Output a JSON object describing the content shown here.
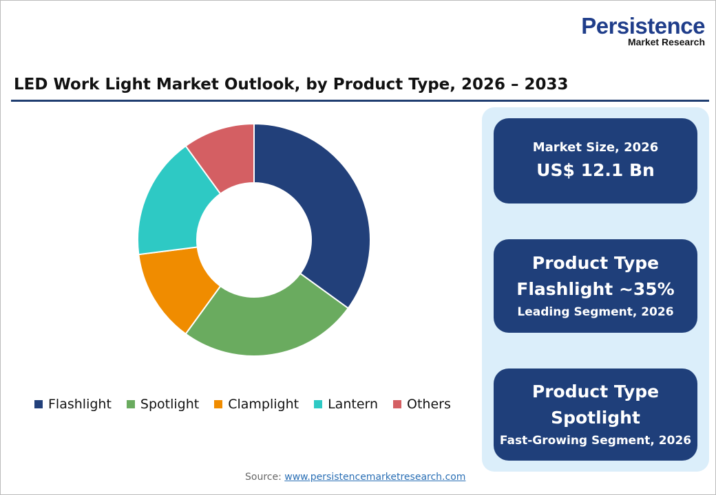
{
  "logo": {
    "line1": "Persistence",
    "line2": "Market Research"
  },
  "title": "LED Work Light Market Outlook, by Product Type, 2026 – 2033",
  "chart_data": {
    "type": "pie",
    "donut": true,
    "categories": [
      "Flashlight",
      "Spotlight",
      "Clamplight",
      "Lantern",
      "Others"
    ],
    "values": [
      35,
      25,
      13,
      17,
      10
    ],
    "colors": [
      "#22407a",
      "#6aab5f",
      "#f08c00",
      "#2ec9c4",
      "#d45f63"
    ],
    "legend": "bottom"
  },
  "cards": [
    {
      "line1": "Market Size, 2026",
      "line2": "US$ 12.1 Bn"
    },
    {
      "line1": "Product Type",
      "line2": "Flashlight ~35%",
      "line3": "Leading Segment, 2026"
    },
    {
      "line1": "Product Type",
      "line2": "Spotlight",
      "line3": "Fast-Growing Segment, 2026"
    }
  ],
  "source": {
    "label": "Source:",
    "link": "www.persistencemarketresearch.com"
  }
}
